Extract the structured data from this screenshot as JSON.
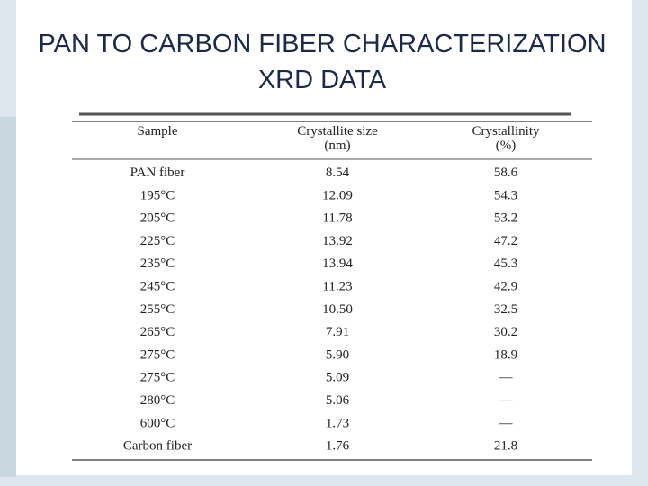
{
  "title": {
    "lines": [
      "PAN TO CARBON FIBER CHARACTERIZATION",
      "XRD DATA"
    ]
  },
  "table": {
    "header": [
      [
        "Sample"
      ],
      [
        "Crystallite size",
        "(nm)"
      ],
      [
        "Crystallinity",
        "(%)"
      ]
    ],
    "rows": [
      [
        "PAN fiber",
        "8.54",
        "58.6"
      ],
      [
        "195°C",
        "12.09",
        "54.3"
      ],
      [
        "205°C",
        "11.78",
        "53.2"
      ],
      [
        "225°C",
        "13.92",
        "47.2"
      ],
      [
        "235°C",
        "13.94",
        "45.3"
      ],
      [
        "245°C",
        "11.23",
        "42.9"
      ],
      [
        "255°C",
        "10.50",
        "32.5"
      ],
      [
        "265°C",
        "7.91",
        "30.2"
      ],
      [
        "275°C",
        "5.90",
        "18.9"
      ],
      [
        "275°C",
        "5.09",
        "—"
      ],
      [
        "280°C",
        "5.06",
        "—"
      ],
      [
        "600°C",
        "1.73",
        "—"
      ],
      [
        "Carbon fiber",
        "1.76",
        "21.8"
      ]
    ]
  }
}
